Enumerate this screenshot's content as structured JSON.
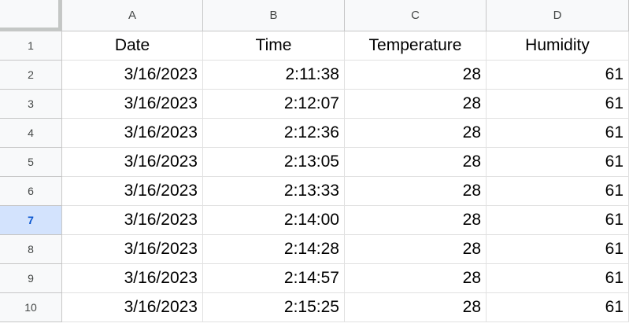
{
  "columns": [
    "A",
    "B",
    "C",
    "D"
  ],
  "header_row": {
    "row_number": "1",
    "cells": [
      "Date",
      "Time",
      "Temperature",
      "Humidity"
    ]
  },
  "rows": [
    {
      "row_number": "2",
      "cells": [
        "3/16/2023",
        "2:11:38",
        "28",
        "61"
      ]
    },
    {
      "row_number": "3",
      "cells": [
        "3/16/2023",
        "2:12:07",
        "28",
        "61"
      ]
    },
    {
      "row_number": "4",
      "cells": [
        "3/16/2023",
        "2:12:36",
        "28",
        "61"
      ]
    },
    {
      "row_number": "5",
      "cells": [
        "3/16/2023",
        "2:13:05",
        "28",
        "61"
      ]
    },
    {
      "row_number": "6",
      "cells": [
        "3/16/2023",
        "2:13:33",
        "28",
        "61"
      ]
    },
    {
      "row_number": "7",
      "cells": [
        "3/16/2023",
        "2:14:00",
        "28",
        "61"
      ]
    },
    {
      "row_number": "8",
      "cells": [
        "3/16/2023",
        "2:14:28",
        "28",
        "61"
      ]
    },
    {
      "row_number": "9",
      "cells": [
        "3/16/2023",
        "2:14:57",
        "28",
        "61"
      ]
    },
    {
      "row_number": "10",
      "cells": [
        "3/16/2023",
        "2:15:25",
        "28",
        "61"
      ]
    }
  ],
  "selected_row": "7",
  "colors": {
    "header_bg": "#f8f9fa",
    "selected_row_header_bg": "#d3e3fd",
    "selected_row_header_text": "#0b57d0",
    "gridline": "#e1e1e1"
  }
}
